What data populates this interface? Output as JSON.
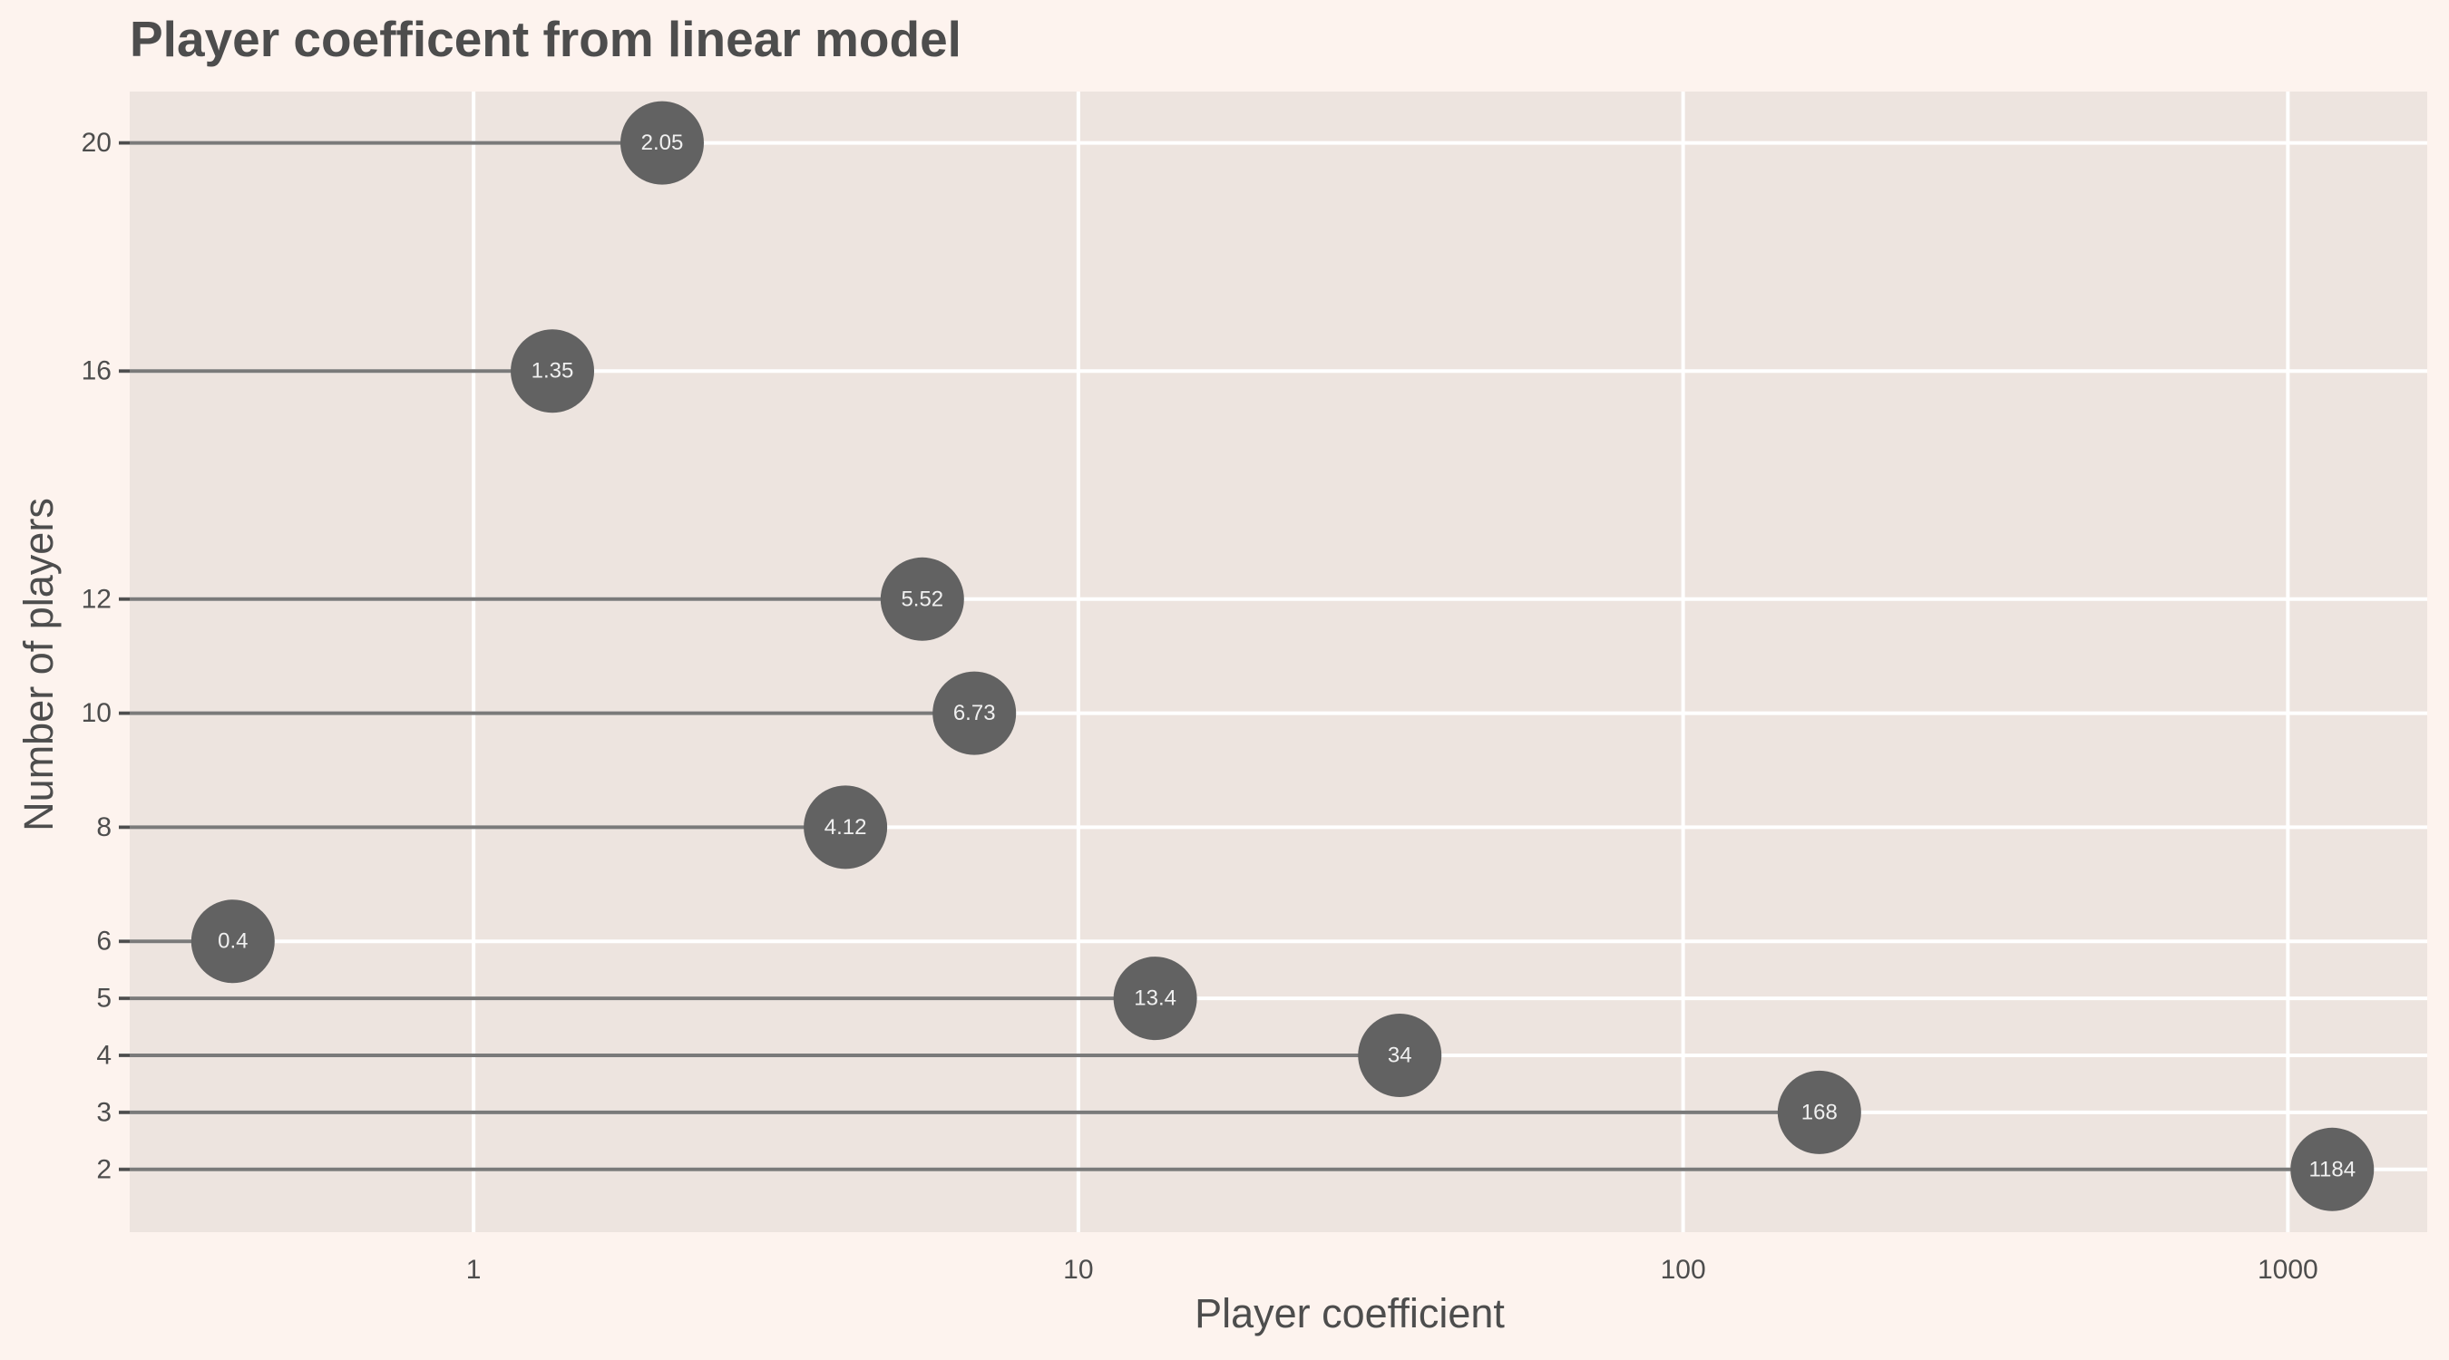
{
  "chart_data": {
    "type": "lollipop",
    "title": "Player coefficent from linear model",
    "xlabel": "Player coefficient",
    "ylabel": "Number of players",
    "x_scale": "log10",
    "xlim": [
      0.27,
      1700
    ],
    "ylim": [
      0.9,
      20.9
    ],
    "x_ticks": [
      1,
      10,
      100,
      1000
    ],
    "x_tick_labels": [
      "1",
      "10",
      "100",
      "1000"
    ],
    "y_ticks": [
      2,
      3,
      4,
      5,
      6,
      8,
      10,
      12,
      16,
      20
    ],
    "y_tick_labels": [
      "2",
      "3",
      "4",
      "5",
      "6",
      "8",
      "10",
      "12",
      "16",
      "20"
    ],
    "grid": true,
    "points": [
      {
        "players": 2,
        "coefficient": 1184,
        "label": "1184"
      },
      {
        "players": 3,
        "coefficient": 168,
        "label": "168"
      },
      {
        "players": 4,
        "coefficient": 34,
        "label": "34"
      },
      {
        "players": 5,
        "coefficient": 13.4,
        "label": "13.4"
      },
      {
        "players": 6,
        "coefficient": 0.4,
        "label": "0.4"
      },
      {
        "players": 8,
        "coefficient": 4.12,
        "label": "4.12"
      },
      {
        "players": 10,
        "coefficient": 6.73,
        "label": "6.73"
      },
      {
        "players": 12,
        "coefficient": 5.52,
        "label": "5.52"
      },
      {
        "players": 16,
        "coefficient": 1.35,
        "label": "1.35"
      },
      {
        "players": 20,
        "coefficient": 2.05,
        "label": "2.05"
      }
    ],
    "colors": {
      "page_background": "#fdf3ee",
      "panel_background": "#ede4df",
      "grid": "#ffffff",
      "stem": "#7a7a7a",
      "point": "#626262",
      "point_label": "#f0f0f0",
      "text": "#4d4d4d"
    }
  }
}
